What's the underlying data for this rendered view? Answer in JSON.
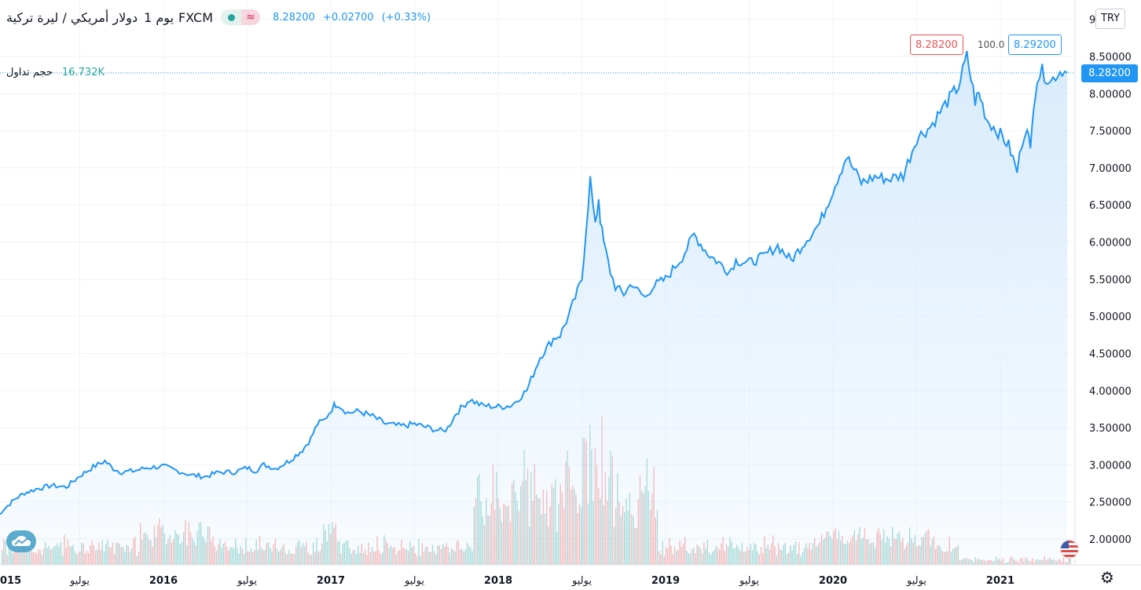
{
  "header": {
    "title": "دولار أمريكي / ليرة تركية",
    "interval": "يوم 1",
    "source": "FXCM",
    "last": "8.28200",
    "change": "+0.02700",
    "change_pct": "(+0.33%)"
  },
  "volume_legend": {
    "label": "حجم تداول",
    "value": "16.732K"
  },
  "quote": {
    "bid": "8.28200",
    "ask": "8.29200",
    "spread": "100.0",
    "last_tag": "8.28200"
  },
  "currency_button": "TRY",
  "icons": {
    "status": "dot-icon",
    "delayed": "wave-icon",
    "logo": "tradingview-cloud-icon",
    "flag": "us-flag-icon",
    "settings": "gear-icon"
  },
  "colors": {
    "line": "#2196f3",
    "fill": "#d6eafc",
    "up_volume": "#26a69a",
    "down_volume": "#ef5350",
    "bid": "#ef5350",
    "ask": "#2196f3"
  },
  "chart_data": {
    "type": "area",
    "title": "",
    "xlabel": "",
    "ylabel": "",
    "grid": true,
    "y_axis_position": "right",
    "x_ticks": [
      "015",
      "يوليو",
      "2016",
      "يوليو",
      "2017",
      "يوليو",
      "2018",
      "يوليو",
      "2019",
      "يوليو",
      "2020",
      "يوليو",
      "2021"
    ],
    "y_ticks": [
      "2.00000",
      "2.50000",
      "3.00000",
      "3.50000",
      "4.00000",
      "4.50000",
      "5.00000",
      "5.50000",
      "6.00000",
      "6.50000",
      "7.00000",
      "7.50000",
      "8.00000",
      "8.50000",
      "9"
    ],
    "ylim": [
      1.75,
      9.0
    ],
    "x": [
      2015.0,
      2015.07,
      2015.12,
      2015.17,
      2015.25,
      2015.33,
      2015.42,
      2015.5,
      2015.58,
      2015.65,
      2015.7,
      2015.75,
      2015.83,
      2015.9,
      2016.0,
      2016.08,
      2016.17,
      2016.25,
      2016.33,
      2016.42,
      2016.5,
      2016.55,
      2016.6,
      2016.67,
      2016.75,
      2016.83,
      2016.88,
      2016.92,
      2016.96,
      2017.02,
      2017.04,
      2017.1,
      2017.17,
      2017.25,
      2017.33,
      2017.42,
      2017.5,
      2017.58,
      2017.67,
      2017.7,
      2017.75,
      2017.83,
      2017.9,
      2018.0,
      2018.08,
      2018.17,
      2018.25,
      2018.33,
      2018.37,
      2018.42,
      2018.5,
      2018.55,
      2018.58,
      2018.6,
      2018.61,
      2018.63,
      2018.67,
      2018.7,
      2018.75,
      2018.8,
      2018.83,
      2018.88,
      2018.92,
      2019.0,
      2019.1,
      2019.17,
      2019.25,
      2019.33,
      2019.38,
      2019.42,
      2019.5,
      2019.58,
      2019.67,
      2019.75,
      2019.83,
      2019.92,
      2020.0,
      2020.08,
      2020.17,
      2020.22,
      2020.25,
      2020.33,
      2020.42,
      2020.5,
      2020.58,
      2020.67,
      2020.75,
      2020.8,
      2020.85,
      2020.87,
      2020.88,
      2020.92,
      2021.0,
      2021.05,
      2021.1,
      2021.13,
      2021.16,
      2021.18,
      2021.2,
      2021.22,
      2021.25,
      2021.3,
      2021.33,
      2021.37,
      2021.4
    ],
    "values": [
      2.3,
      2.45,
      2.55,
      2.62,
      2.68,
      2.72,
      2.7,
      2.85,
      2.97,
      3.05,
      2.95,
      2.9,
      2.92,
      2.96,
      2.98,
      2.92,
      2.86,
      2.84,
      2.9,
      2.9,
      2.96,
      2.92,
      3.0,
      2.95,
      3.05,
      3.2,
      3.35,
      3.55,
      3.6,
      3.8,
      3.82,
      3.7,
      3.72,
      3.65,
      3.55,
      3.52,
      3.55,
      3.5,
      3.45,
      3.5,
      3.7,
      3.88,
      3.8,
      3.78,
      3.8,
      4.0,
      4.45,
      4.7,
      4.75,
      5.0,
      5.5,
      6.85,
      6.2,
      6.6,
      6.3,
      6.0,
      5.6,
      5.4,
      5.3,
      5.45,
      5.35,
      5.25,
      5.4,
      5.5,
      5.8,
      6.1,
      5.85,
      5.7,
      5.6,
      5.75,
      5.72,
      5.8,
      5.95,
      5.75,
      6.0,
      6.25,
      6.7,
      7.15,
      6.8,
      6.85,
      6.88,
      6.85,
      6.9,
      7.4,
      7.55,
      7.85,
      8.1,
      8.5,
      7.9,
      8.0,
      7.95,
      7.65,
      7.45,
      7.3,
      6.95,
      7.35,
      7.6,
      7.2,
      7.9,
      8.2,
      8.3,
      8.15,
      8.25,
      8.32,
      8.28
    ]
  }
}
